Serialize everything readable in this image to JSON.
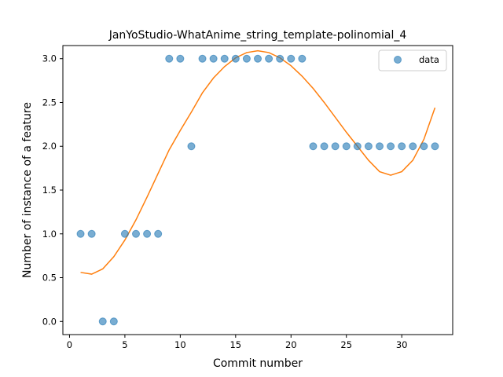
{
  "chart_data": {
    "type": "scatter",
    "title": "JanYoStudio-WhatAnime_string_template-polinomial_4",
    "xlabel": "Commit number",
    "ylabel": "Number of instance of a feature",
    "xlim": [
      -0.6,
      34.6
    ],
    "ylim": [
      -0.15,
      3.15
    ],
    "xticks": [
      0,
      5,
      10,
      15,
      20,
      25,
      30
    ],
    "yticks": [
      0.0,
      0.5,
      1.0,
      1.5,
      2.0,
      2.5,
      3.0
    ],
    "xtick_labels": [
      "0",
      "5",
      "10",
      "15",
      "20",
      "25",
      "30"
    ],
    "ytick_labels": [
      "0.0",
      "0.5",
      "1.0",
      "1.5",
      "2.0",
      "2.5",
      "3.0"
    ],
    "grid": false,
    "legend_position": "top-right",
    "series": [
      {
        "name": "data",
        "kind": "scatter",
        "color": "#1f77b4",
        "x": [
          1,
          2,
          3,
          4,
          5,
          6,
          7,
          8,
          9,
          10,
          11,
          12,
          13,
          14,
          15,
          16,
          17,
          18,
          19,
          20,
          21,
          22,
          23,
          24,
          25,
          26,
          27,
          28,
          29,
          30,
          31,
          32,
          33
        ],
        "y": [
          1,
          1,
          0,
          0,
          1,
          1,
          1,
          1,
          3,
          3,
          2,
          3,
          3,
          3,
          3,
          3,
          3,
          3,
          3,
          3,
          3,
          2,
          2,
          2,
          2,
          2,
          2,
          2,
          2,
          2,
          2,
          2,
          2
        ]
      },
      {
        "kind": "line",
        "color": "#ff7f0e",
        "x": [
          1,
          2,
          3,
          4,
          5,
          6,
          7,
          8,
          9,
          10,
          11,
          12,
          13,
          14,
          15,
          16,
          17,
          18,
          19,
          20,
          21,
          22,
          23,
          24,
          25,
          26,
          27,
          28,
          29,
          30,
          31,
          32,
          33
        ],
        "y": [
          0.56,
          0.54,
          0.6,
          0.74,
          0.93,
          1.16,
          1.42,
          1.69,
          1.96,
          2.18,
          2.39,
          2.61,
          2.78,
          2.91,
          3.01,
          3.07,
          3.09,
          3.07,
          3.01,
          2.92,
          2.8,
          2.66,
          2.5,
          2.33,
          2.16,
          2.0,
          1.84,
          1.71,
          1.67,
          1.71,
          1.84,
          2.08,
          2.44
        ]
      }
    ]
  }
}
